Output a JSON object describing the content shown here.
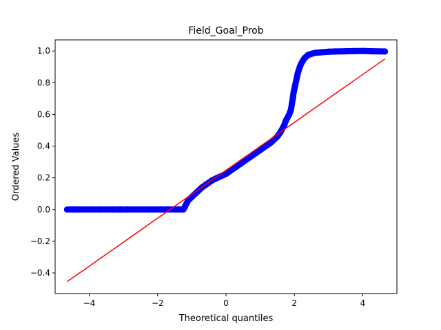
{
  "chart_data": {
    "type": "scatter",
    "title": "Field_Goal_Prob",
    "xlabel": "Theoretical quantiles",
    "ylabel": "Ordered Values",
    "xlim": [
      -5.0,
      5.0
    ],
    "ylim": [
      -0.53,
      1.07
    ],
    "xticks": [
      -4,
      -2,
      0,
      2,
      4
    ],
    "xtick_labels": [
      "−4",
      "−2",
      "0",
      "2",
      "4"
    ],
    "yticks": [
      -0.4,
      -0.2,
      0.0,
      0.2,
      0.4,
      0.6,
      0.8,
      1.0
    ],
    "ytick_labels": [
      "−0.4",
      "−0.2",
      "0.0",
      "0.2",
      "0.4",
      "0.6",
      "0.8",
      "1.0"
    ],
    "grid": false,
    "series": [
      {
        "kind": "points",
        "color": "#0000ff",
        "x": [
          -4.65,
          -4.45,
          -4.3,
          -4.1,
          -3.9,
          -3.7,
          -3.5,
          -3.3,
          -3.1,
          -2.9,
          -2.7,
          -2.5,
          -2.3,
          -2.1,
          -1.9,
          -1.7,
          -1.5,
          -1.35,
          -1.25,
          -1.22,
          -1.2,
          -1.15,
          -1.1,
          -1.0,
          -0.9,
          -0.8,
          -0.7,
          -0.6,
          -0.5,
          -0.4,
          -0.3,
          -0.2,
          -0.1,
          0.0,
          0.1,
          0.2,
          0.3,
          0.4,
          0.5,
          0.6,
          0.7,
          0.8,
          0.9,
          1.0,
          1.1,
          1.2,
          1.3,
          1.4,
          1.5,
          1.6,
          1.7,
          1.75,
          1.8,
          1.85,
          1.9,
          1.93,
          1.96,
          1.98,
          2.0,
          2.02,
          2.04,
          2.06,
          2.08,
          2.1,
          2.13,
          2.16,
          2.2,
          2.25,
          2.3,
          2.35,
          2.4,
          2.5,
          2.6,
          2.8,
          3.0,
          3.2,
          3.5,
          3.7,
          4.0,
          4.3,
          4.65
        ],
        "y": [
          0.0,
          0.0,
          0.0,
          0.0,
          0.0,
          0.0,
          0.0,
          0.0,
          0.0,
          0.0,
          0.0,
          0.0,
          0.0,
          0.0,
          0.0,
          0.0,
          0.0,
          0.0,
          0.0,
          0.01,
          0.02,
          0.04,
          0.06,
          0.08,
          0.1,
          0.12,
          0.14,
          0.155,
          0.17,
          0.185,
          0.195,
          0.205,
          0.215,
          0.225,
          0.24,
          0.255,
          0.27,
          0.285,
          0.3,
          0.315,
          0.33,
          0.345,
          0.36,
          0.375,
          0.39,
          0.405,
          0.42,
          0.44,
          0.46,
          0.49,
          0.53,
          0.56,
          0.58,
          0.6,
          0.63,
          0.67,
          0.71,
          0.74,
          0.76,
          0.78,
          0.8,
          0.82,
          0.84,
          0.86,
          0.88,
          0.9,
          0.92,
          0.94,
          0.955,
          0.965,
          0.975,
          0.982,
          0.988,
          0.992,
          0.995,
          0.997,
          0.998,
          0.999,
          1.0,
          0.998,
          0.997
        ]
      },
      {
        "kind": "line",
        "color": "#ff0000",
        "x": [
          -4.65,
          4.65
        ],
        "y": [
          -0.455,
          0.95
        ]
      }
    ]
  }
}
